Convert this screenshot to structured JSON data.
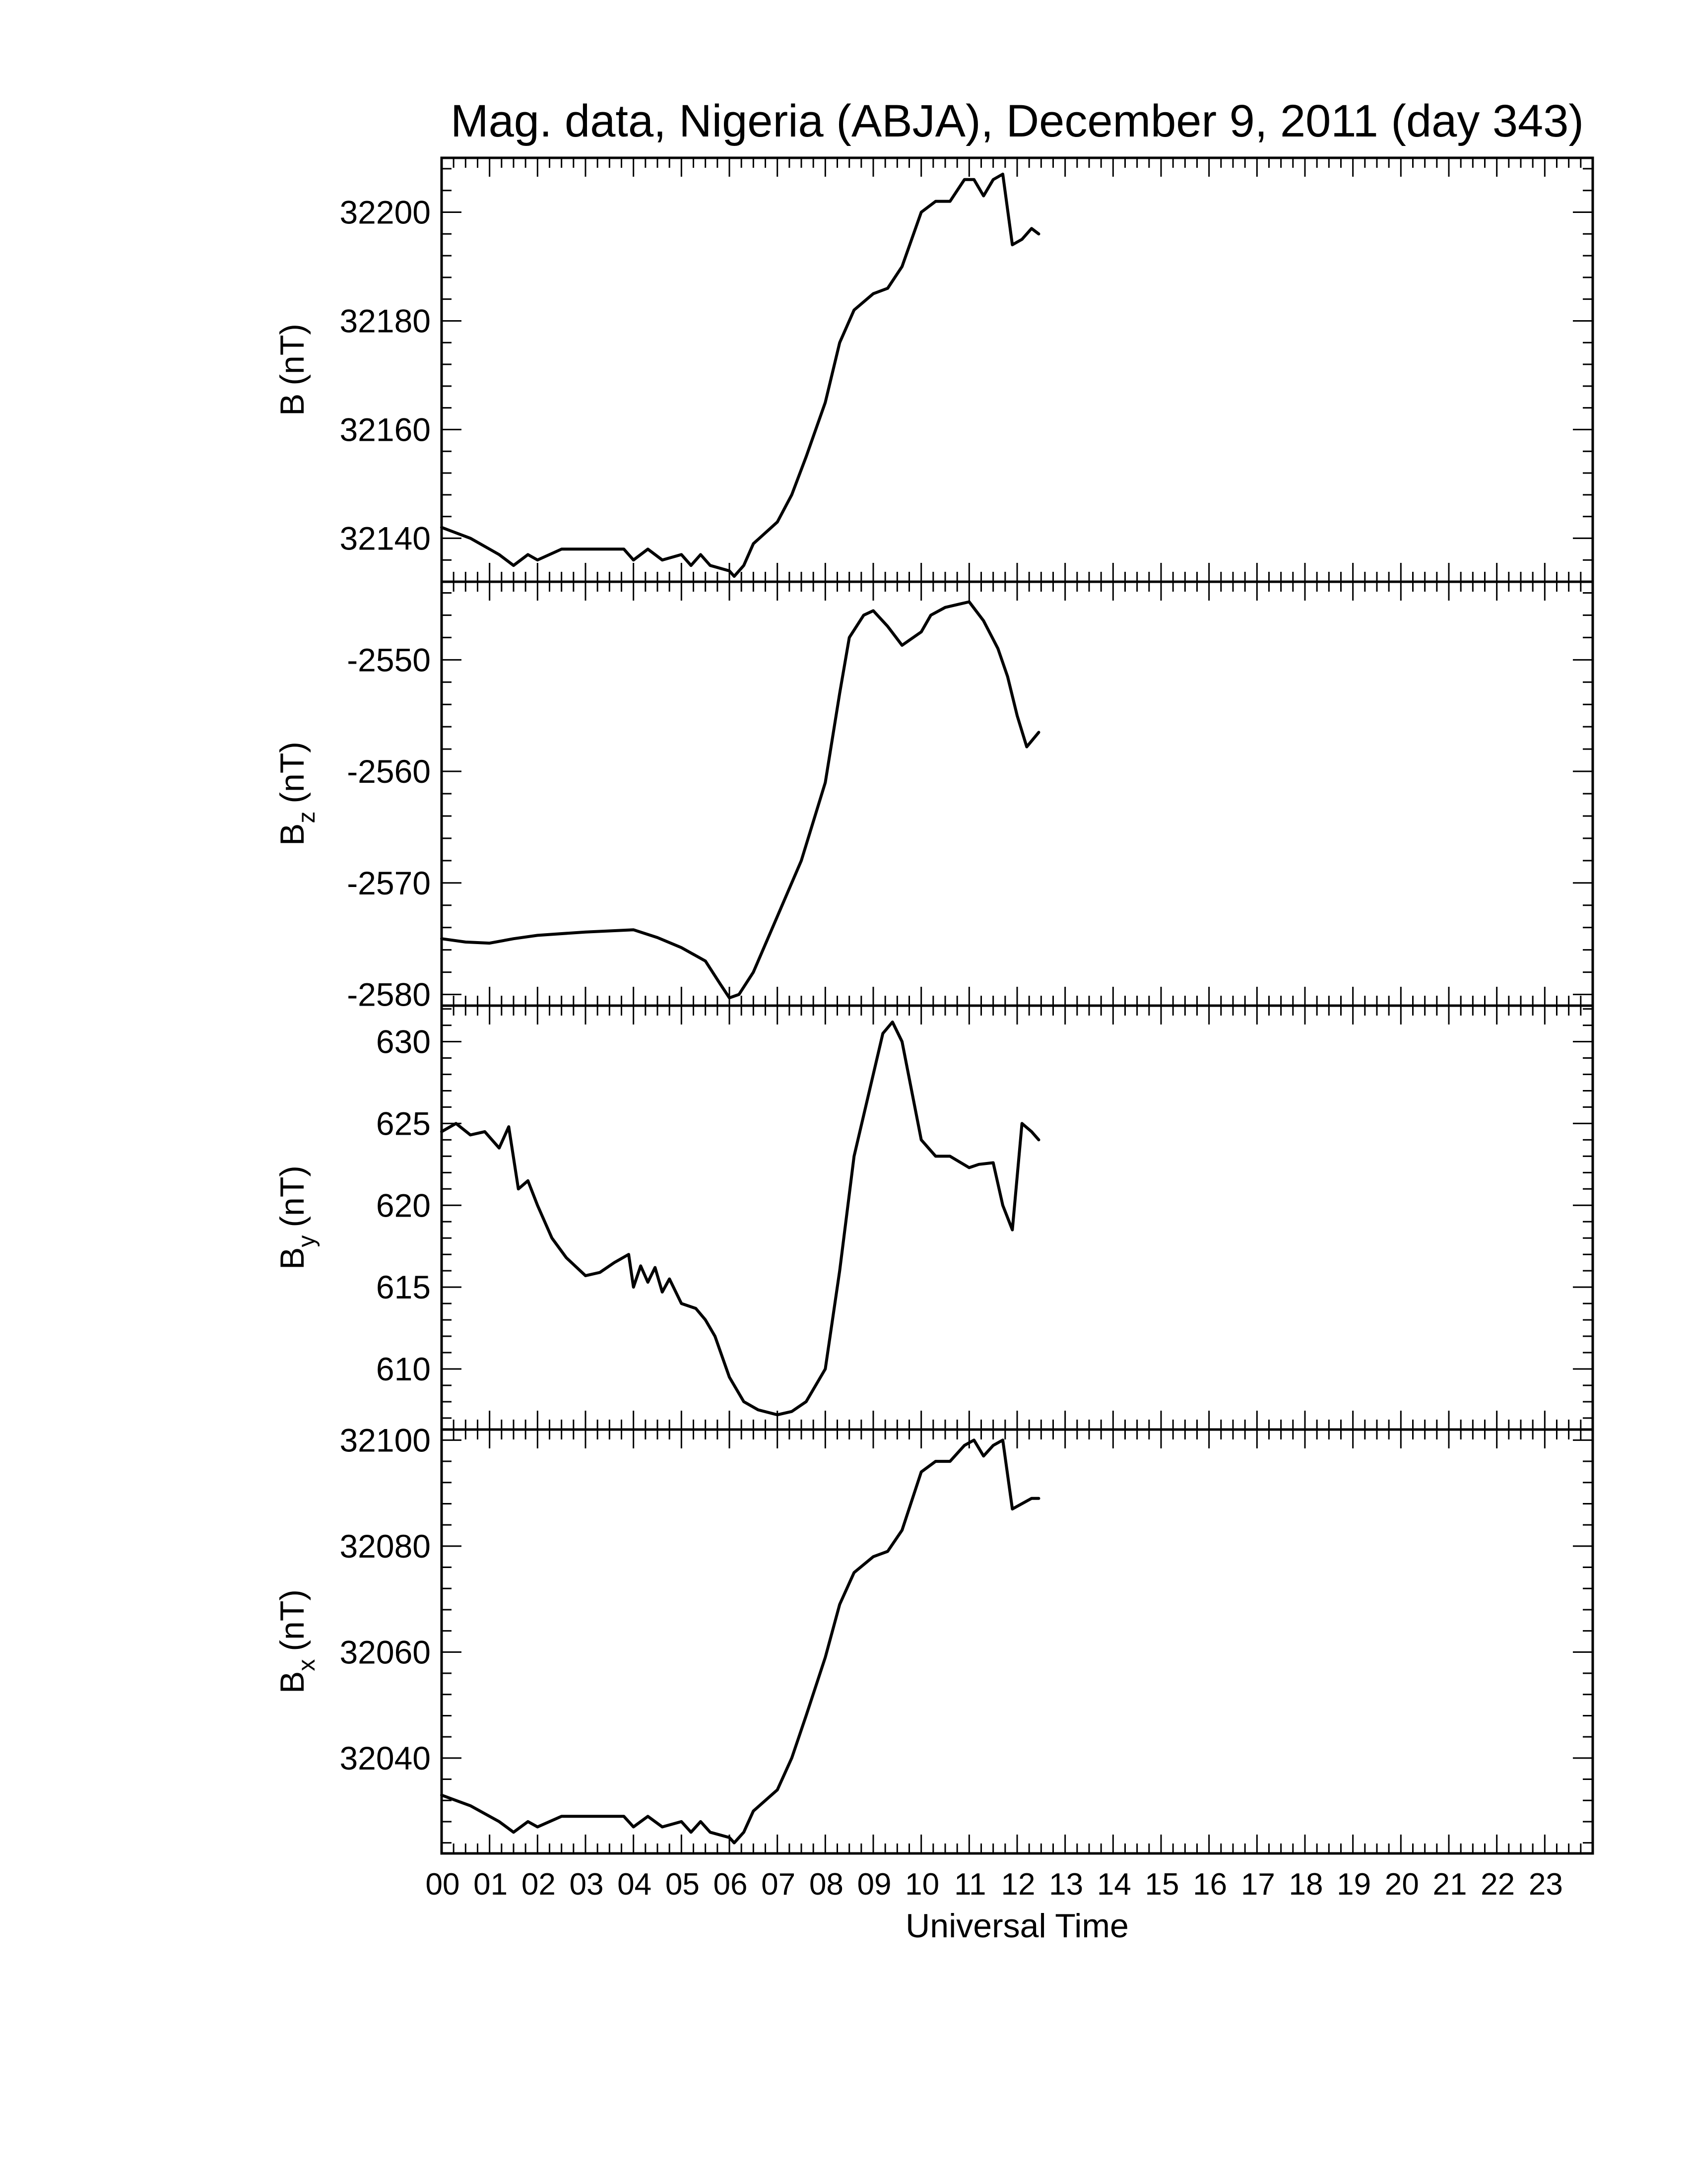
{
  "chart_data": {
    "type": "line",
    "title": "Mag. data, Nigeria (ABJA), December 9, 2011 (day 343)",
    "xlabel": "Universal Time",
    "x_unit": "hours UT",
    "xlim": [
      0,
      24
    ],
    "x_tick_labels": [
      "00",
      "01",
      "02",
      "03",
      "04",
      "05",
      "06",
      "07",
      "08",
      "09",
      "10",
      "11",
      "12",
      "13",
      "14",
      "15",
      "16",
      "17",
      "18",
      "19",
      "20",
      "21",
      "22",
      "23"
    ],
    "panels": [
      {
        "id": "B",
        "ylabel_main": "B",
        "ylabel_sub": "",
        "ylabel_unit": "(nT)",
        "ylim": [
          32132,
          32210
        ],
        "yticks": [
          32140,
          32160,
          32180,
          32200
        ],
        "x": [
          0,
          0.3,
          0.6,
          1,
          1.2,
          1.5,
          1.8,
          2,
          2.5,
          3,
          3.5,
          3.8,
          4,
          4.3,
          4.6,
          5,
          5.2,
          5.4,
          5.6,
          6,
          6.1,
          6.3,
          6.5,
          7,
          7.3,
          7.6,
          8,
          8.3,
          8.6,
          9,
          9.3,
          9.6,
          10,
          10.3,
          10.6,
          10.9,
          11.1,
          11.3,
          11.5,
          11.7,
          11.9,
          12.1,
          12.3,
          12.45
        ],
        "values": [
          32142,
          32141,
          32140,
          32138,
          32137,
          32135,
          32137,
          32136,
          32138,
          32138,
          32138,
          32138,
          32136,
          32138,
          32136,
          32137,
          32135,
          32137,
          32135,
          32134,
          32133,
          32135,
          32139,
          32143,
          32148,
          32155,
          32165,
          32176,
          32182,
          32185,
          32186,
          32190,
          32200,
          32202,
          32202,
          32206,
          32206,
          32203,
          32206,
          32207,
          32194,
          32195,
          32197,
          32196
        ]
      },
      {
        "id": "Bz",
        "ylabel_main": "B",
        "ylabel_sub": "z",
        "ylabel_unit": "(nT)",
        "ylim": [
          -2581,
          -2543
        ],
        "yticks": [
          -2580,
          -2570,
          -2560,
          -2550
        ],
        "x": [
          0,
          0.5,
          1,
          1.5,
          2,
          3,
          4,
          4.5,
          5,
          5.5,
          5.8,
          6,
          6.2,
          6.5,
          7,
          7.5,
          8,
          8.3,
          8.5,
          8.8,
          9,
          9.3,
          9.6,
          10,
          10.2,
          10.5,
          10.8,
          11,
          11.3,
          11.6,
          11.8,
          12,
          12.2,
          12.45
        ],
        "values": [
          -2575,
          -2575.3,
          -2575.4,
          -2575,
          -2574.7,
          -2574.4,
          -2574.2,
          -2574.9,
          -2575.8,
          -2577,
          -2579,
          -2580.3,
          -2580,
          -2578,
          -2573,
          -2568,
          -2561,
          -2553,
          -2548,
          -2546,
          -2545.6,
          -2547,
          -2548.7,
          -2547.5,
          -2546,
          -2545.3,
          -2545,
          -2544.8,
          -2546.5,
          -2549,
          -2551.5,
          -2555,
          -2557.8,
          -2556.5
        ]
      },
      {
        "id": "By",
        "ylabel_main": "B",
        "ylabel_sub": "y",
        "ylabel_unit": "(nT)",
        "ylim": [
          606.3,
          632.2
        ],
        "yticks": [
          610,
          615,
          620,
          625,
          630
        ],
        "x": [
          0,
          0.3,
          0.6,
          0.9,
          1.2,
          1.4,
          1.6,
          1.8,
          2,
          2.3,
          2.6,
          3,
          3.3,
          3.6,
          3.9,
          4,
          4.15,
          4.3,
          4.45,
          4.6,
          4.75,
          5,
          5.3,
          5.5,
          5.7,
          6,
          6.3,
          6.6,
          7,
          7.3,
          7.6,
          8,
          8.3,
          8.6,
          9,
          9.2,
          9.4,
          9.6,
          10,
          10.3,
          10.6,
          11,
          11.2,
          11.5,
          11.7,
          11.9,
          12.1,
          12.3,
          12.45
        ],
        "values": [
          624.5,
          625,
          624.3,
          624.5,
          623.5,
          624.8,
          621,
          621.5,
          620,
          618,
          616.8,
          615.7,
          615.9,
          616.5,
          617,
          615,
          616.3,
          615.3,
          616.2,
          614.7,
          615.5,
          614,
          613.7,
          613,
          612,
          609.5,
          608,
          607.5,
          607.2,
          607.4,
          608,
          610,
          616,
          623,
          628,
          630.5,
          631.2,
          630,
          624,
          623,
          623,
          622.3,
          622.5,
          622.6,
          620,
          618.5,
          625,
          624.5,
          624
        ]
      },
      {
        "id": "Bx",
        "ylabel_main": "B",
        "ylabel_sub": "x",
        "ylabel_unit": "(nT)",
        "ylim": [
          32022,
          32102
        ],
        "yticks": [
          32040,
          32060,
          32080,
          32100
        ],
        "x": [
          0,
          0.3,
          0.6,
          1,
          1.2,
          1.5,
          1.8,
          2,
          2.5,
          3,
          3.5,
          3.8,
          4,
          4.3,
          4.6,
          5,
          5.2,
          5.4,
          5.6,
          6,
          6.1,
          6.3,
          6.5,
          7,
          7.3,
          7.6,
          8,
          8.3,
          8.6,
          9,
          9.3,
          9.6,
          10,
          10.3,
          10.6,
          10.9,
          11.1,
          11.3,
          11.5,
          11.7,
          11.9,
          12.1,
          12.3,
          12.45
        ],
        "values": [
          32033,
          32032,
          32031,
          32029,
          32028,
          32026,
          32028,
          32027,
          32029,
          32029,
          32029,
          32029,
          32027,
          32029,
          32027,
          32028,
          32026,
          32028,
          32026,
          32025,
          32024,
          32026,
          32030,
          32034,
          32040,
          32048,
          32059,
          32069,
          32075,
          32078,
          32079,
          32083,
          32094,
          32096,
          32096,
          32099,
          32100,
          32097,
          32099,
          32100,
          32087,
          32088,
          32089,
          32089
        ]
      }
    ]
  }
}
